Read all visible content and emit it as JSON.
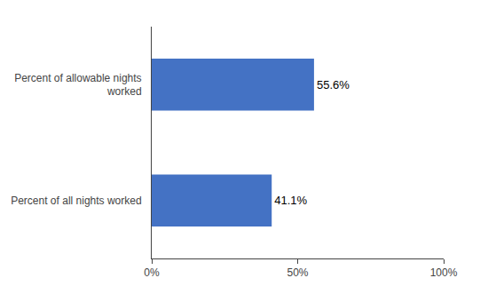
{
  "chart_data": {
    "type": "bar",
    "orientation": "horizontal",
    "categories": [
      "Percent of all nights worked",
      "Percent of allowable nights\nworked"
    ],
    "values": [
      41.1,
      55.6
    ],
    "value_labels": [
      "41.1%",
      "55.6%"
    ],
    "data_labels": true,
    "color": "#4472C4",
    "xlim": [
      0,
      100
    ],
    "xticks": [
      {
        "value": 0,
        "label": "0%"
      },
      {
        "value": 50,
        "label": "50%"
      },
      {
        "value": 100,
        "label": "100%"
      }
    ],
    "grid": false
  }
}
